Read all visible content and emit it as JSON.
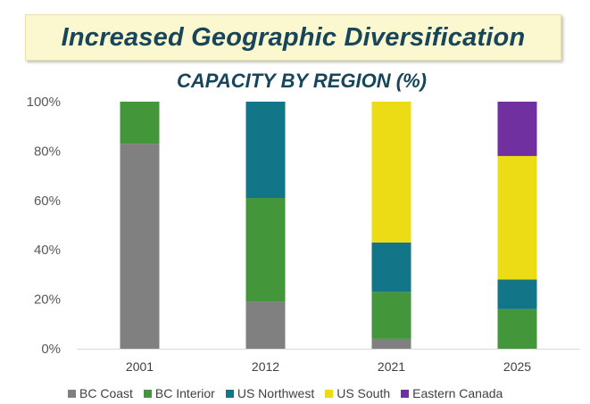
{
  "header": {
    "title": "Increased Geographic Diversification"
  },
  "chart_data": {
    "type": "bar",
    "stacked": true,
    "title": "CAPACITY BY REGION (%)",
    "xlabel": "",
    "ylabel": "",
    "categories": [
      "2001",
      "2012",
      "2021",
      "2025"
    ],
    "ylim": [
      0,
      100
    ],
    "yticks": [
      0,
      20,
      40,
      60,
      80,
      100
    ],
    "ytick_labels": [
      "0%",
      "20%",
      "40%",
      "60%",
      "80%",
      "100%"
    ],
    "legend_position": "bottom",
    "grid": false,
    "series": [
      {
        "name": "BC Coast",
        "color": "#808080",
        "values": [
          83,
          19,
          4,
          0
        ]
      },
      {
        "name": "BC Interior",
        "color": "#43963a",
        "values": [
          17,
          42,
          19,
          16
        ]
      },
      {
        "name": "US Northwest",
        "color": "#127688",
        "values": [
          0,
          39,
          20,
          12
        ]
      },
      {
        "name": "US South",
        "color": "#ecdc15",
        "values": [
          0,
          0,
          57,
          50
        ]
      },
      {
        "name": "Eastern Canada",
        "color": "#7030a0",
        "values": [
          0,
          0,
          0,
          22
        ]
      }
    ]
  }
}
